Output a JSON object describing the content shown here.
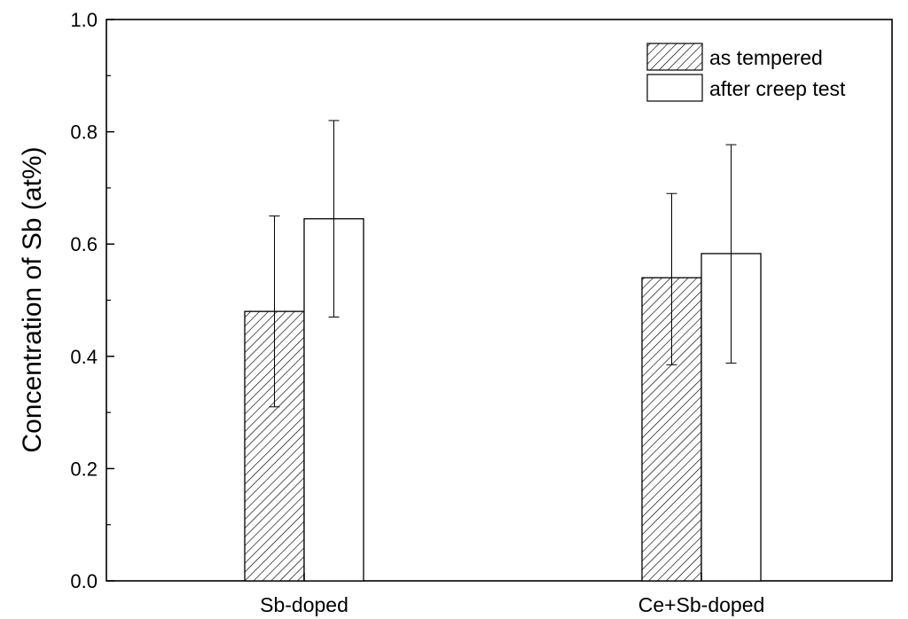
{
  "chart_data": {
    "type": "bar",
    "title": "",
    "xlabel": "",
    "ylabel": "Concentration of Sb  (at%)",
    "ylim": [
      0,
      1.0
    ],
    "yticks": [
      0.0,
      0.2,
      0.4,
      0.6,
      0.8,
      1.0
    ],
    "ytick_labels": [
      "0.0",
      "0.2",
      "0.4",
      "0.6",
      "0.8",
      "1.0"
    ],
    "categories": [
      "Sb-doped",
      "Ce+Sb-doped"
    ],
    "series": [
      {
        "name": "as tempered",
        "pattern": "hatched",
        "values": [
          0.48,
          0.54
        ],
        "error_low": [
          0.31,
          0.385
        ],
        "error_high": [
          0.65,
          0.69
        ]
      },
      {
        "name": "after creep test",
        "pattern": "open",
        "values": [
          0.645,
          0.583
        ],
        "error_low": [
          0.47,
          0.388
        ],
        "error_high": [
          0.82,
          0.777
        ]
      }
    ],
    "legend_position": "top-right",
    "grid": false,
    "colors": {
      "bar_fill": "#ffffff",
      "stroke": "#000000"
    }
  }
}
